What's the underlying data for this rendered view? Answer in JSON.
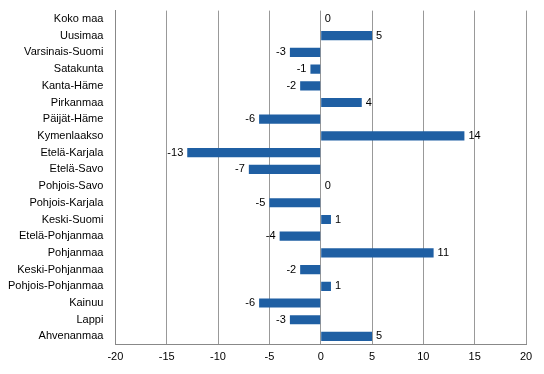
{
  "chart_data": {
    "type": "bar",
    "orientation": "horizontal",
    "categories": [
      "Koko maa",
      "Uusimaa",
      "Varsinais-Suomi",
      "Satakunta",
      "Kanta-Häme",
      "Pirkanmaa",
      "Päijät-Häme",
      "Kymenlaakso",
      "Etelä-Karjala",
      "Etelä-Savo",
      "Pohjois-Savo",
      "Pohjois-Karjala",
      "Keski-Suomi",
      "Etelä-Pohjanmaa",
      "Pohjanmaa",
      "Keski-Pohjanmaa",
      "Pohjois-Pohjanmaa",
      "Kainuu",
      "Lappi",
      "Ahvenanmaa"
    ],
    "values": [
      0,
      5,
      -3,
      -1,
      -2,
      4,
      -6,
      14,
      -13,
      -7,
      0,
      -5,
      1,
      -4,
      11,
      -2,
      1,
      -6,
      -3,
      5
    ],
    "color": "#1f5fa3",
    "xlim": [
      -20,
      20
    ],
    "xticks": [
      -20,
      -15,
      -10,
      -5,
      0,
      5,
      10,
      15,
      20
    ],
    "grid": true,
    "data_labels": true
  }
}
